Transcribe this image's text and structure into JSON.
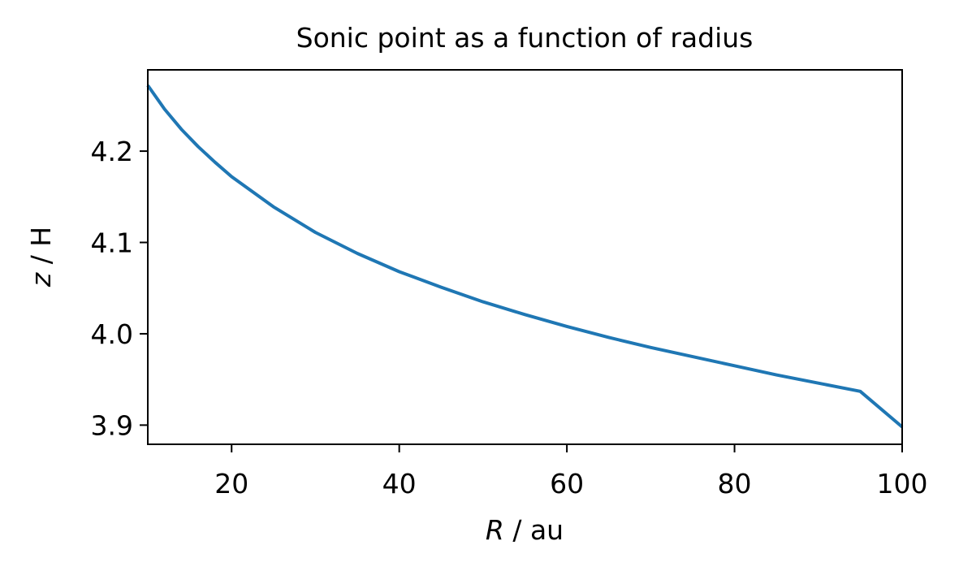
{
  "chart_data": {
    "type": "line",
    "title": "Sonic point as a function of radius",
    "xlabel": {
      "var": "R",
      "unit": " / au"
    },
    "ylabel": {
      "var": "z",
      "unit": " / H"
    },
    "xlim": [
      10,
      100
    ],
    "ylim": [
      3.879,
      4.289
    ],
    "xticks": [
      20,
      40,
      60,
      80,
      100
    ],
    "xtick_labels": [
      "20",
      "40",
      "60",
      "80",
      "100"
    ],
    "yticks": [
      3.9,
      4.0,
      4.1,
      4.2
    ],
    "ytick_labels": [
      "3.9",
      "4.0",
      "4.1",
      "4.2"
    ],
    "grid": false,
    "series": [
      {
        "color": "#1f77b4",
        "x": [
          10,
          12,
          14,
          16,
          18,
          20,
          25,
          30,
          35,
          40,
          45,
          50,
          55,
          60,
          65,
          70,
          75,
          80,
          85,
          90,
          95,
          100
        ],
        "y": [
          4.272,
          4.246,
          4.224,
          4.205,
          4.188,
          4.172,
          4.139,
          4.111,
          4.088,
          4.068,
          4.051,
          4.035,
          4.021,
          4.008,
          3.996,
          3.985,
          3.975,
          3.965,
          3.955,
          3.946,
          3.937,
          3.898
        ]
      }
    ]
  }
}
